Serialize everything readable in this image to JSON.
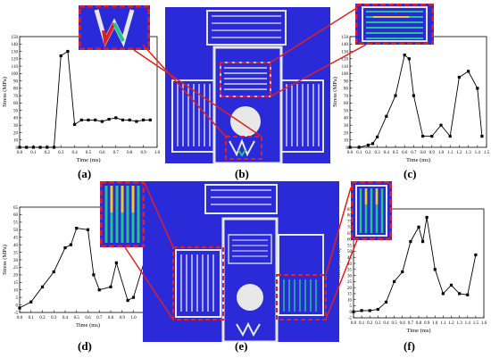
{
  "figure": {
    "panel_labels": [
      "(a)",
      "(b)",
      "(c)",
      "(d)",
      "(e)",
      "(f)"
    ],
    "colors": {
      "fea_background": "#2222cc",
      "fea_structure": "#e8e8e8",
      "callout_frame": "#e02020",
      "stress_low": "#1a1adb",
      "stress_mid": "#22c58a",
      "stress_high": "#e8d020",
      "stress_peak": "#e02020"
    }
  },
  "chart_data": [
    {
      "id": "a",
      "type": "line",
      "title": "",
      "xlabel": "Time (ms)",
      "ylabel": "Stress (MPa)",
      "xlim": [
        0,
        1.0
      ],
      "ylim": [
        0,
        150
      ],
      "xticks": [
        0.0,
        0.1,
        0.2,
        0.3,
        0.4,
        0.5,
        0.6,
        0.7,
        0.8,
        0.9,
        1.0
      ],
      "yticks": [
        0,
        10,
        20,
        30,
        40,
        50,
        60,
        70,
        80,
        90,
        100,
        110,
        120,
        130,
        140,
        150
      ],
      "xtick_labels": [
        "0.0",
        "0.1",
        "0.2",
        "0.3",
        "0.4",
        "0.5",
        "0.6",
        "0.7",
        "0.8",
        "0.9",
        "1.0"
      ],
      "ytick_labels": [
        "0",
        "10",
        "20",
        "30",
        "40",
        "50",
        "60",
        "70",
        "80",
        "90",
        "100",
        "110",
        "120",
        "130",
        "140",
        "150"
      ],
      "x": [
        0.0,
        0.05,
        0.1,
        0.15,
        0.2,
        0.25,
        0.3,
        0.35,
        0.4,
        0.45,
        0.5,
        0.55,
        0.6,
        0.65,
        0.7,
        0.75,
        0.8,
        0.85,
        0.9,
        0.95
      ],
      "values": [
        0,
        0,
        0,
        0,
        0,
        0,
        124,
        130,
        31,
        37,
        37,
        37,
        35,
        38,
        40,
        37,
        37,
        35,
        37,
        37
      ]
    },
    {
      "id": "c",
      "type": "line",
      "title": "",
      "xlabel": "Time (ms)",
      "ylabel": "Stress (MPa)",
      "xlim": [
        0,
        1.5
      ],
      "ylim": [
        0,
        150
      ],
      "xticks": [
        0.0,
        0.1,
        0.2,
        0.3,
        0.4,
        0.5,
        0.6,
        0.7,
        0.8,
        0.9,
        1.0,
        1.1,
        1.2,
        1.3,
        1.4,
        1.5
      ],
      "yticks": [
        0,
        10,
        20,
        30,
        40,
        50,
        60,
        70,
        80,
        90,
        100,
        110,
        120,
        130,
        140,
        150
      ],
      "xtick_labels": [
        "0.0",
        "0.1",
        "0.2",
        "0.3",
        "0.4",
        "0.5",
        "0.6",
        "0.7",
        "0.8",
        "0.9",
        "1.0",
        "1.1",
        "1.2",
        "1.3",
        "1.4",
        "1.5"
      ],
      "ytick_labels": [
        "0",
        "10",
        "20",
        "30",
        "40",
        "50",
        "60",
        "70",
        "80",
        "90",
        "100",
        "110",
        "120",
        "130",
        "140",
        "150"
      ],
      "x": [
        0.0,
        0.1,
        0.2,
        0.25,
        0.3,
        0.4,
        0.5,
        0.6,
        0.65,
        0.7,
        0.8,
        0.9,
        1.0,
        1.1,
        1.2,
        1.3,
        1.4,
        1.45
      ],
      "values": [
        0,
        0,
        3,
        5,
        14,
        42,
        70,
        125,
        120,
        70,
        15,
        15,
        30,
        15,
        95,
        103,
        80,
        15
      ]
    },
    {
      "id": "d",
      "type": "line",
      "title": "",
      "xlabel": "Time (ms)",
      "ylabel": "Stress (MPa)",
      "xlim": [
        0,
        1.2
      ],
      "ylim": [
        -5,
        65
      ],
      "xticks": [
        0.0,
        0.1,
        0.2,
        0.3,
        0.4,
        0.5,
        0.6,
        0.7,
        0.8,
        0.9,
        1.0,
        1.1,
        1.2
      ],
      "yticks": [
        -5,
        0,
        5,
        10,
        15,
        20,
        25,
        30,
        35,
        40,
        45,
        50,
        55,
        60,
        65
      ],
      "xtick_labels": [
        "0.0",
        "0.1",
        "0.2",
        "0.3",
        "0.4",
        "0.5",
        "0.6",
        "0.7",
        "0.8",
        "0.9",
        "1.0",
        "1.1",
        "1.2"
      ],
      "ytick_labels": [
        "-5",
        "0",
        "5",
        "10",
        "15",
        "20",
        "25",
        "30",
        "35",
        "40",
        "45",
        "50",
        "55",
        "60",
        "65"
      ],
      "x": [
        0.0,
        0.1,
        0.2,
        0.3,
        0.4,
        0.45,
        0.5,
        0.6,
        0.65,
        0.7,
        0.8,
        0.85,
        0.95,
        1.0,
        1.1,
        1.2
      ],
      "values": [
        -2,
        2,
        12,
        22,
        38,
        40,
        51,
        50,
        20,
        10,
        12,
        28,
        3,
        5,
        30,
        15
      ]
    },
    {
      "id": "f",
      "type": "line",
      "title": "",
      "xlabel": "Time (ms)",
      "ylabel": "Stress (MPa)",
      "xlim": [
        0,
        1.6
      ],
      "ylim": [
        -5,
        85
      ],
      "xticks": [
        0.0,
        0.1,
        0.2,
        0.3,
        0.4,
        0.5,
        0.6,
        0.7,
        0.8,
        0.9,
        1.0,
        1.1,
        1.2,
        1.3,
        1.4,
        1.5,
        1.6
      ],
      "yticks": [
        -5,
        0,
        5,
        10,
        15,
        20,
        25,
        30,
        35,
        40,
        45,
        50,
        55,
        60,
        65,
        70,
        75,
        80,
        85
      ],
      "xtick_labels": [
        "0.0",
        "0.1",
        "0.2",
        "0.3",
        "0.4",
        "0.5",
        "0.6",
        "0.7",
        "0.8",
        "0.9",
        "1.0",
        "1.1",
        "1.2",
        "1.3",
        "1.4",
        "1.5",
        "1.6"
      ],
      "ytick_labels": [
        "-5",
        "0",
        "5",
        "10",
        "15",
        "20",
        "25",
        "30",
        "35",
        "40",
        "45",
        "50",
        "55",
        "60",
        "65",
        "70",
        "75",
        "80",
        "85"
      ],
      "x": [
        0.0,
        0.1,
        0.2,
        0.3,
        0.4,
        0.5,
        0.6,
        0.7,
        0.8,
        0.85,
        0.9,
        1.0,
        1.1,
        1.2,
        1.3,
        1.4,
        1.5
      ],
      "values": [
        0,
        1,
        1,
        2,
        8,
        25,
        33,
        58,
        70,
        58,
        78,
        35,
        15,
        22,
        15,
        14,
        47
      ]
    }
  ]
}
